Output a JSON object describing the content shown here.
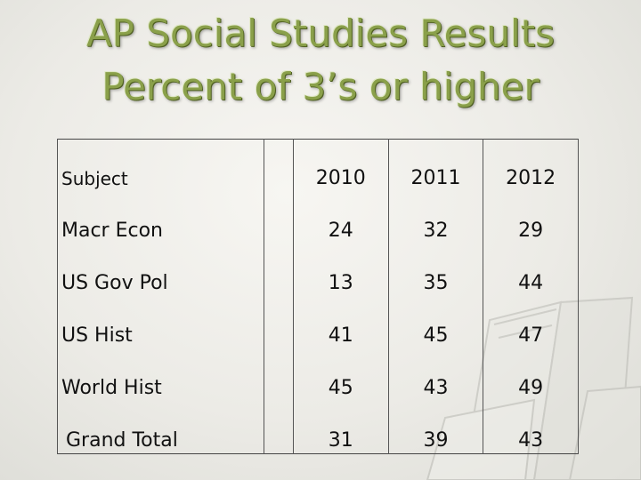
{
  "title": {
    "line1": "AP Social Studies Results",
    "line2": "Percent of 3’s or higher"
  },
  "table": {
    "headers": [
      "Subject",
      "2010",
      "2011",
      "2012"
    ],
    "rows": [
      {
        "subject": "Macr Econ",
        "values": [
          "24",
          "32",
          "29"
        ]
      },
      {
        "subject": "US Gov Pol",
        "values": [
          "13",
          "35",
          "44"
        ]
      },
      {
        "subject": "US Hist",
        "values": [
          "41",
          "45",
          "47"
        ]
      },
      {
        "subject": "World Hist",
        "values": [
          "45",
          "43",
          "49"
        ]
      },
      {
        "subject": "Grand Total",
        "values": [
          "31",
          "39",
          "43"
        ]
      }
    ]
  },
  "colors": {
    "title": "#8aa04a",
    "background": "#ecebe6"
  },
  "decoration": {
    "background_icon": "books-illustration"
  }
}
